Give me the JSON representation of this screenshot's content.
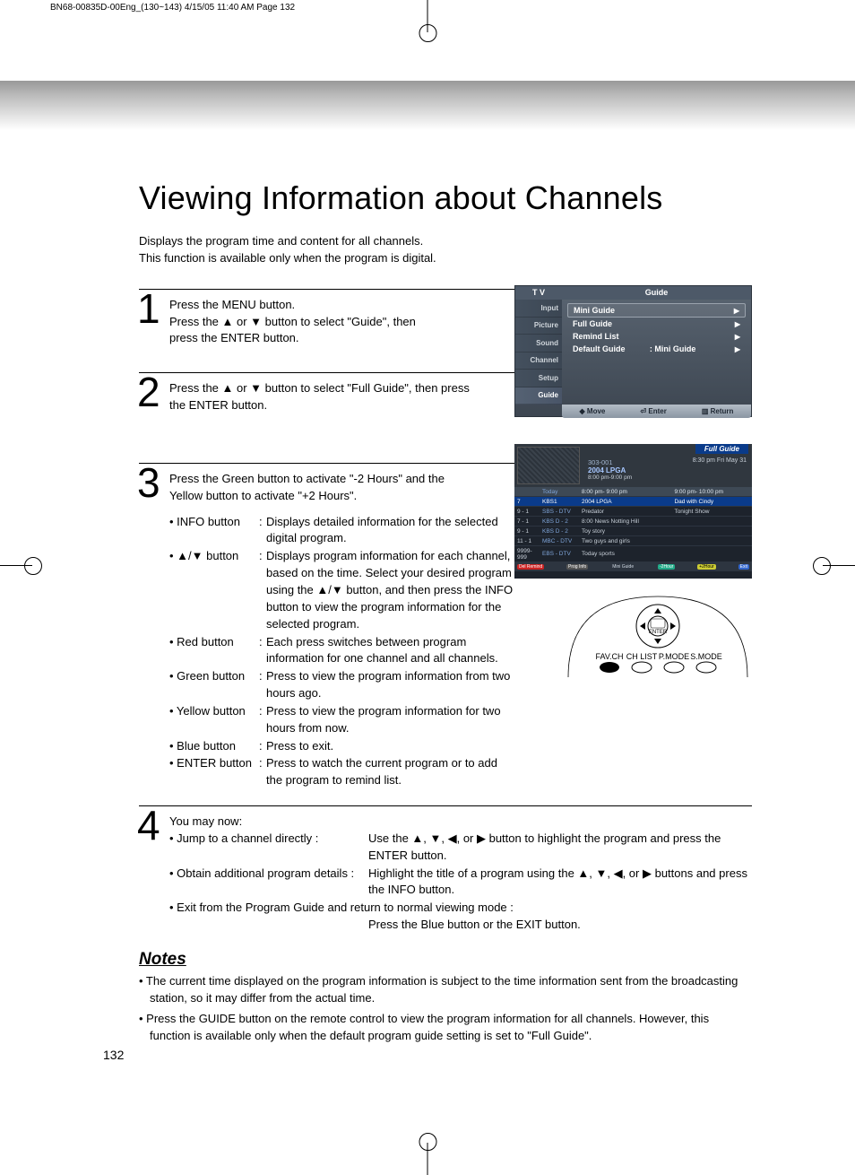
{
  "header": "BN68-00835D-00Eng_(130~143)  4/15/05  11:40 AM  Page 132",
  "title": "Viewing Information about Channels",
  "intro_l1": "Displays the program time and content for all channels.",
  "intro_l2": "This function is available only when the program is digital.",
  "step1": {
    "num": "1",
    "l1": "Press the MENU button.",
    "l2": "Press the ▲ or ▼ button to select \"Guide\", then",
    "l3": "press the ENTER button."
  },
  "step2": {
    "num": "2",
    "l1": "Press the ▲ or ▼ button to select \"Full Guide\", then press",
    "l2": "the ENTER button."
  },
  "step3": {
    "num": "3",
    "intro_l1": "Press the Green button to activate \"-2 Hours\" and the",
    "intro_l2": "Yellow button to activate \"+2 Hours\".",
    "buttons": [
      {
        "lbl": "• INFO button",
        "desc": "Displays detailed information for the selected digital program."
      },
      {
        "lbl": "• ▲/▼ button",
        "desc": "Displays program information for each channel, based on the time. Select your desired program using the ▲/▼ button, and then press the INFO button to view the program information for the selected program."
      },
      {
        "lbl": "• Red button",
        "desc": "Each press switches between program information for one channel and all channels."
      },
      {
        "lbl": "• Green button",
        "desc": "Press to view the program information from two hours ago."
      },
      {
        "lbl": "• Yellow button",
        "desc": "Press to view the program information for two hours from now."
      },
      {
        "lbl": "• Blue button",
        "desc": "Press to exit."
      },
      {
        "lbl": "• ENTER button",
        "desc": "Press to watch the current program or to add the program to remind list."
      }
    ]
  },
  "step4": {
    "num": "4",
    "intro": "You may now:",
    "rows": [
      {
        "lbl": "• Jump to a channel directly :",
        "desc": "Use the ▲, ▼, ◀, or ▶ button to highlight the program and press the ENTER button."
      },
      {
        "lbl": "• Obtain additional program details :",
        "desc": "Highlight the title of a program using the ▲, ▼, ◀, or ▶ buttons and press the INFO button."
      }
    ],
    "exit_l1": "• Exit from the Program Guide and return to normal viewing mode :",
    "exit_l2": "Press the Blue button or the EXIT button."
  },
  "notes_title": "Notes",
  "notes": [
    "The current time displayed on the program information is subject to the time information sent from the broadcasting station, so it may differ from the actual time.",
    "Press the GUIDE button on the remote control to view the program information for all channels. However, this function is available only when the default program guide setting is set to \"Full Guide\"."
  ],
  "page_num": "132",
  "tv_menu": {
    "title_left": "T V",
    "title_right": "Guide",
    "tabs": [
      "Input",
      "Picture",
      "Sound",
      "Channel",
      "Setup",
      "Guide"
    ],
    "items": [
      {
        "label": "Mini Guide",
        "highlight": true
      },
      {
        "label": "Full Guide"
      },
      {
        "label": "Remind List"
      },
      {
        "label": "Default Guide",
        "val": ": Mini Guide"
      }
    ],
    "footer": {
      "move": "Move",
      "enter": "Enter",
      "return": "Return"
    }
  },
  "full_guide": {
    "title": "Full Guide",
    "time_right": "8:30 pm Fri May 31",
    "ch": "303-001",
    "prog": "2004 LPGA",
    "ptime": "8:00 pm-9:00 pm",
    "cols": [
      "Today",
      "8:00 pm- 9:00 pm",
      "9:00 pm- 10:00 pm"
    ],
    "rows": [
      {
        "ch": "7",
        "name": "KBS1",
        "c1": "2004 LPGA",
        "c2": "Dad with Cindy",
        "sel": true
      },
      {
        "ch": "9 - 1",
        "name": "SBS - DTV",
        "c1": "Predator",
        "c2": "Tonight Show"
      },
      {
        "ch": "7 - 1",
        "name": "KBS D - 2",
        "c1": "8:00 News        Notting Hill",
        "c2": ""
      },
      {
        "ch": "9 - 1",
        "name": "KBS D - 2",
        "c1": "Toy story",
        "c2": ""
      },
      {
        "ch": "11 - 1",
        "name": "MBC - DTV",
        "c1": "Two guys and girls",
        "c2": ""
      },
      {
        "ch": "9999-999",
        "name": "EBS - DTV",
        "c1": "Today sports",
        "c2": ""
      }
    ],
    "footer": [
      "Del Remind",
      "Prog Info",
      "Mini Guide",
      "-2Hour",
      "+2Hour",
      "Exit"
    ]
  },
  "remote": {
    "enter": "ENTER",
    "labels": [
      "FAV.CH",
      "CH LIST",
      "P.MODE",
      "S.MODE"
    ]
  }
}
